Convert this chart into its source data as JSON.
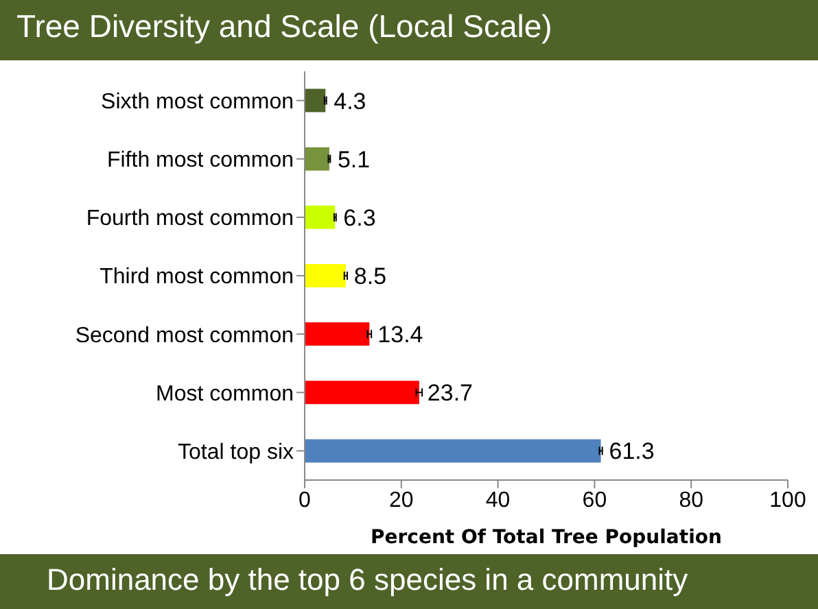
{
  "chart_data": {
    "type": "bar",
    "orientation": "horizontal",
    "title": "Tree Diversity and Scale (Local Scale)",
    "annotations": [
      "Dominance by the top 6 species in a community"
    ],
    "xlabel": "Percent Of Total Tree Population",
    "categories": [
      "Sixth most common",
      "Fifth most common",
      "Fourth most common",
      "Third most common",
      "Second most common",
      "Most common",
      "Total top six"
    ],
    "values": [
      4.3,
      5.1,
      6.3,
      8.5,
      13.4,
      23.7,
      61.3
    ],
    "colors": [
      "#4f6228",
      "#77933c",
      "#ccff00",
      "#ffff00",
      "#ff0000",
      "#ff0000",
      "#4f81bd"
    ],
    "errors": [
      0.2,
      0.2,
      0.2,
      0.3,
      0.4,
      0.6,
      0.3
    ],
    "data_labels": true,
    "xlim": [
      0,
      100
    ],
    "xticks": [
      0,
      20,
      40,
      60,
      80,
      100
    ]
  }
}
